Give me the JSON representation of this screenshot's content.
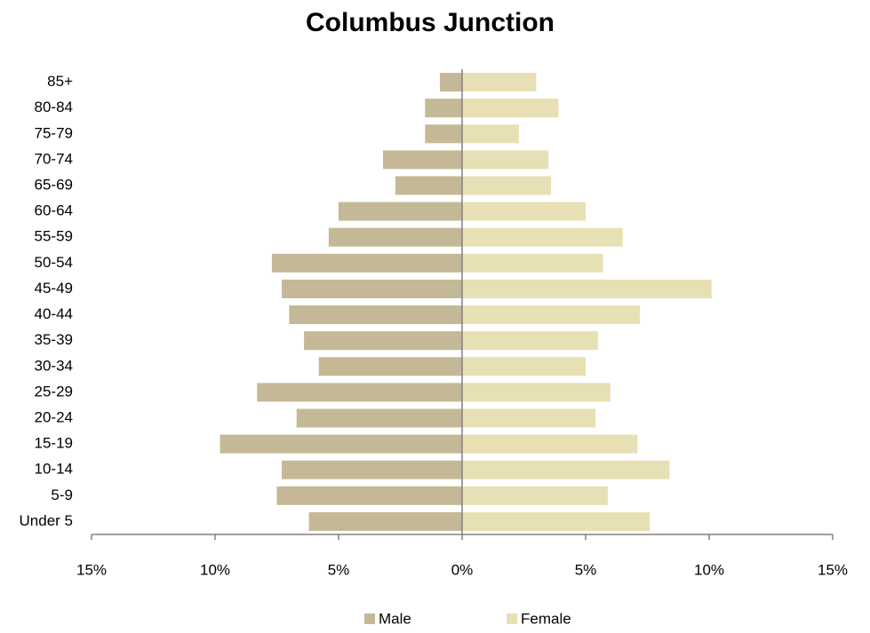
{
  "chart_data": {
    "type": "bar",
    "orientation": "horizontal",
    "title": "Columbus Junction",
    "categories": [
      "Under 5",
      "5-9",
      "10-14",
      "15-19",
      "20-24",
      "25-29",
      "30-34",
      "35-39",
      "40-44",
      "45-49",
      "50-54",
      "55-59",
      "60-64",
      "65-69",
      "70-74",
      "75-79",
      "80-84",
      "85+"
    ],
    "series": [
      {
        "name": "Male",
        "color": "#c4b896",
        "values": [
          -6.2,
          -7.5,
          -7.3,
          -9.8,
          -6.7,
          -8.3,
          -5.8,
          -6.4,
          -7.0,
          -7.3,
          -7.7,
          -5.4,
          -5.0,
          -2.7,
          -3.2,
          -1.5,
          -1.5,
          -0.9
        ]
      },
      {
        "name": "Female",
        "color": "#e8e0b5",
        "values": [
          7.6,
          5.9,
          8.4,
          7.1,
          5.4,
          6.0,
          5.0,
          5.5,
          7.2,
          10.1,
          5.7,
          6.5,
          5.0,
          3.6,
          3.5,
          2.3,
          3.9,
          3.0
        ]
      }
    ],
    "xlim": [
      -15,
      15
    ],
    "xticks": [
      {
        "value": -15,
        "label": "15%"
      },
      {
        "value": -10,
        "label": "10%"
      },
      {
        "value": -5,
        "label": "5%"
      },
      {
        "value": 0,
        "label": "0%"
      },
      {
        "value": 5,
        "label": "5%"
      },
      {
        "value": 10,
        "label": "10%"
      },
      {
        "value": 15,
        "label": "15%"
      }
    ],
    "legend": "bottom"
  }
}
